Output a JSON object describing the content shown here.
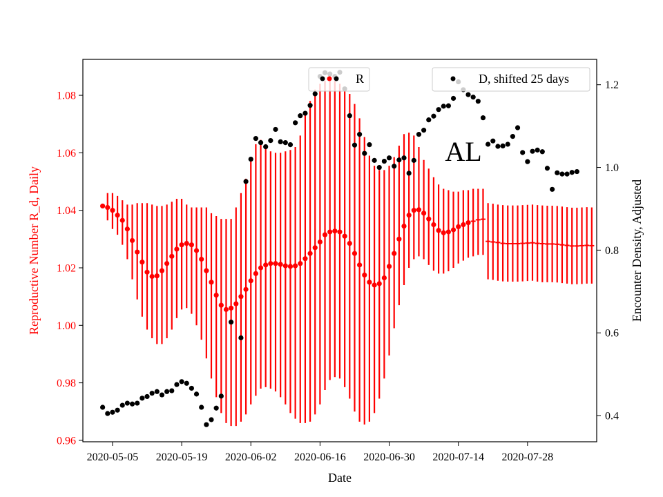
{
  "chart_data": {
    "type": "scatter",
    "annotation": "AL",
    "xlabel": "Date",
    "ylabel_left": "Reproductive Number R_d, Daily",
    "ylabel_right": "Encounter Density, Adjusted",
    "x_tick_labels": [
      "2020-05-05",
      "2020-05-19",
      "2020-06-02",
      "2020-06-16",
      "2020-06-30",
      "2020-07-14",
      "2020-07-28"
    ],
    "x_range": [
      "2020-04-29",
      "2020-08-11"
    ],
    "y_left_range": [
      0.9595,
      1.0925
    ],
    "y_left_ticks": [
      "0.96",
      "0.98",
      "1.00",
      "1.02",
      "1.04",
      "1.06",
      "1.08"
    ],
    "y_right_range": [
      0.3366,
      1.2613
    ],
    "y_right_ticks": [
      "0.4",
      "0.6",
      "0.8",
      "1.0",
      "1.2"
    ],
    "colors": {
      "R": "#ff0000",
      "D": "#000000",
      "left_axis_text": "#ff0000"
    },
    "legend": [
      {
        "label": "R",
        "placement": "upper-center"
      },
      {
        "label": "D, shifted 25 days",
        "placement": "upper-right"
      }
    ],
    "R_series": {
      "name": "R",
      "start_date": "2020-05-03",
      "marker_count": 75,
      "values": [
        1.0415,
        1.041,
        1.04,
        1.0383,
        1.0365,
        1.0335,
        1.0295,
        1.0255,
        1.022,
        1.0185,
        1.017,
        1.0172,
        1.019,
        1.0215,
        1.024,
        1.0265,
        1.028,
        1.0285,
        1.028,
        1.026,
        1.023,
        1.019,
        1.015,
        1.0105,
        1.007,
        1.0055,
        1.006,
        1.0075,
        1.01,
        1.0125,
        1.0155,
        1.018,
        1.02,
        1.021,
        1.0215,
        1.0215,
        1.0212,
        1.0207,
        1.0205,
        1.0207,
        1.0215,
        1.0232,
        1.025,
        1.027,
        1.029,
        1.0315,
        1.0325,
        1.0328,
        1.0325,
        1.031,
        1.0285,
        1.025,
        1.021,
        1.0175,
        1.015,
        1.014,
        1.0145,
        1.0165,
        1.0205,
        1.025,
        1.03,
        1.0345,
        1.0383,
        1.04,
        1.0402,
        1.039,
        1.037,
        1.035,
        1.033,
        1.0322,
        1.0325,
        1.0332,
        1.0343,
        1.035,
        1.0357,
        1.0362,
        1.0367,
        1.0369,
        1.0292,
        1.029,
        1.0288,
        1.0285,
        1.0284,
        1.0284,
        1.0284,
        1.0285,
        1.0286,
        1.0287,
        1.0285,
        1.0284,
        1.0283,
        1.0283,
        1.0282,
        1.028,
        1.0278,
        1.0276,
        1.0276,
        1.0277,
        1.0278,
        1.0277
      ],
      "lower": [
        1.0415,
        1.0365,
        1.0335,
        1.0315,
        1.028,
        1.023,
        1.016,
        1.009,
        1.003,
        0.9985,
        0.9955,
        0.9935,
        0.9935,
        0.9955,
        0.9985,
        1.0025,
        1.0055,
        1.006,
        1.004,
        1.0,
        0.995,
        0.9885,
        0.9815,
        0.975,
        0.9695,
        0.966,
        0.965,
        0.965,
        0.9665,
        0.969,
        0.9725,
        0.9755,
        0.978,
        0.9785,
        0.978,
        0.977,
        0.975,
        0.9725,
        0.9695,
        0.9675,
        0.966,
        0.966,
        0.9665,
        0.969,
        0.9725,
        0.9775,
        0.981,
        0.982,
        0.9815,
        0.9785,
        0.9745,
        0.97,
        0.9665,
        0.9655,
        0.9665,
        0.9695,
        0.9745,
        0.9815,
        0.9895,
        0.999,
        1.007,
        1.014,
        1.02,
        1.023,
        1.024,
        1.023,
        1.021,
        1.019,
        1.018,
        1.018,
        1.0188,
        1.02,
        1.0215,
        1.0225,
        1.0235,
        1.024,
        1.0245,
        1.0245,
        1.016,
        1.0158,
        1.0155,
        1.0153,
        1.0152,
        1.0152,
        1.0152,
        1.0153,
        1.0154,
        1.0155,
        1.0152,
        1.015,
        1.015,
        1.015,
        1.0149,
        1.0147,
        1.0145,
        1.0143,
        1.0143,
        1.0144,
        1.0145,
        1.0145
      ],
      "upper": [
        1.0415,
        1.046,
        1.046,
        1.045,
        1.0435,
        1.042,
        1.042,
        1.0425,
        1.0425,
        1.0425,
        1.042,
        1.0415,
        1.0415,
        1.042,
        1.043,
        1.044,
        1.044,
        1.042,
        1.041,
        1.041,
        1.041,
        1.041,
        1.039,
        1.038,
        1.037,
        1.037,
        1.037,
        1.041,
        1.046,
        1.051,
        1.057,
        1.063,
        1.0645,
        1.063,
        1.0605,
        1.06,
        1.06,
        1.0605,
        1.061,
        1.062,
        1.066,
        1.073,
        1.078,
        1.082,
        1.084,
        1.085,
        1.085,
        1.085,
        1.084,
        1.0825,
        1.0805,
        1.077,
        1.072,
        1.0655,
        1.059,
        1.0555,
        1.054,
        1.054,
        1.0555,
        1.0585,
        1.0625,
        1.0665,
        1.067,
        1.066,
        1.062,
        1.0575,
        1.0545,
        1.0515,
        1.049,
        1.0475,
        1.047,
        1.0465,
        1.0465,
        1.047,
        1.047,
        1.0475,
        1.0475,
        1.0475,
        1.0425,
        1.0423,
        1.042,
        1.0418,
        1.0417,
        1.0417,
        1.0417,
        1.0418,
        1.0419,
        1.042,
        1.0418,
        1.0417,
        1.0416,
        1.0416,
        1.0415,
        1.0413,
        1.0411,
        1.0409,
        1.0409,
        1.041,
        1.0411,
        1.041
      ]
    },
    "D_series": {
      "name": "D, shifted 25 days",
      "start_date": "2020-05-03",
      "values": [
        0.42,
        0.405,
        0.408,
        0.413,
        0.425,
        0.43,
        0.428,
        0.43,
        0.442,
        0.446,
        0.454,
        0.458,
        0.45,
        0.458,
        0.46,
        0.475,
        0.482,
        0.478,
        0.466,
        0.452,
        0.42,
        0.378,
        0.39,
        0.418,
        0.447,
        null,
        0.626,
        null,
        0.588,
        0.966,
        1.02,
        1.07,
        1.06,
        1.05,
        1.065,
        1.092,
        1.062,
        1.06,
        1.055,
        1.108,
        1.125,
        1.131,
        1.15,
        1.178,
        1.22,
        1.229,
        1.226,
        1.22,
        1.23,
        1.19,
        1.125,
        1.054,
        1.08,
        1.034,
        1.055,
        1.017,
        1.0,
        1.015,
        1.023,
        1.003,
        1.018,
        1.023,
        0.986,
        1.017,
        1.08,
        1.09,
        1.115,
        1.124,
        1.14,
        1.148,
        1.149,
        1.167,
        1.207,
        1.188,
        1.176,
        1.17,
        1.16,
        1.12,
        1.056,
        1.064,
        1.051,
        1.052,
        1.056,
        1.075,
        1.096,
        1.036,
        1.014,
        1.039,
        1.042,
        1.038,
        0.998,
        0.947,
        0.987,
        0.984,
        0.984,
        0.988,
        0.99
      ]
    }
  }
}
